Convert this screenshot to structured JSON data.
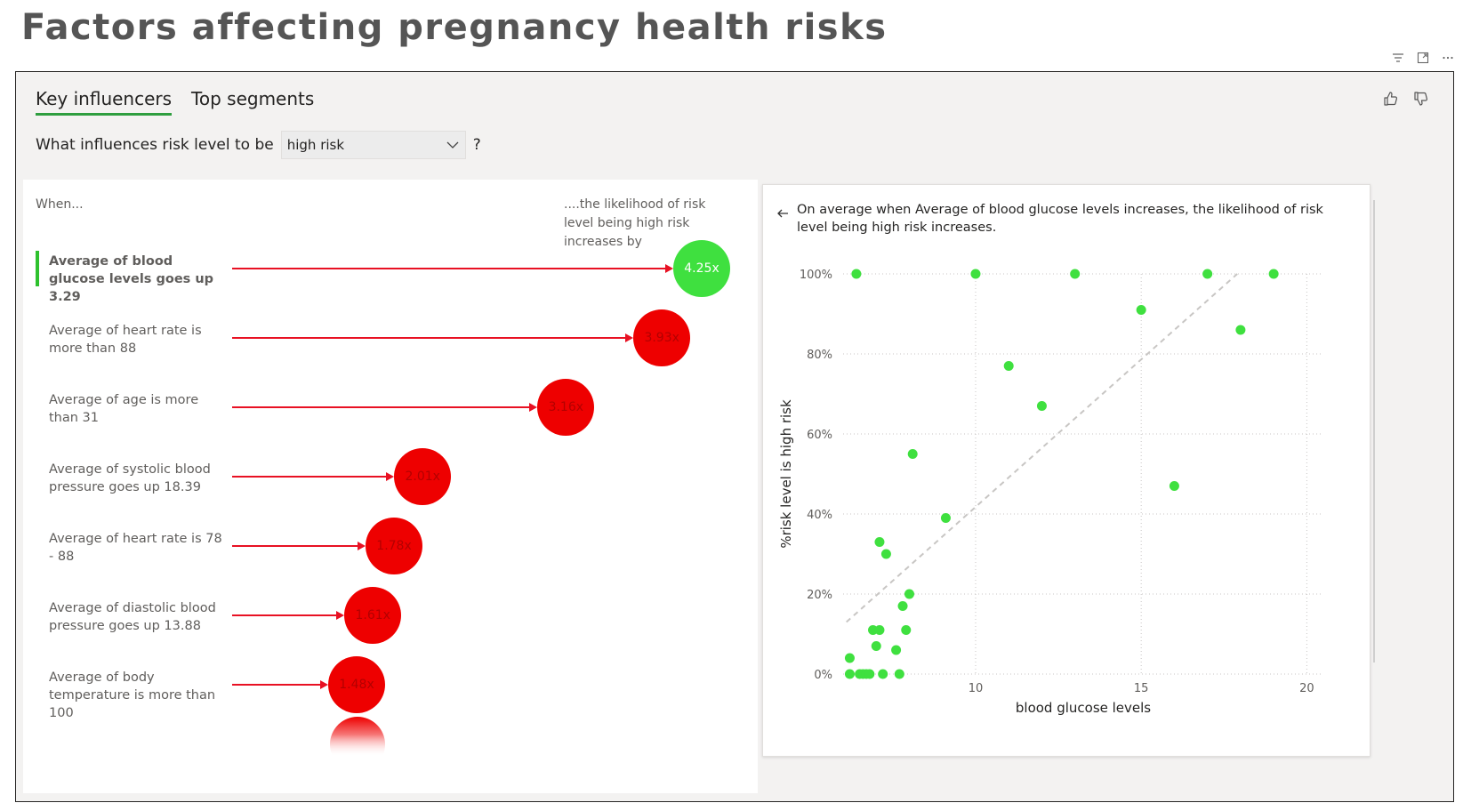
{
  "page": {
    "title": "Factors affecting pregnancy health risks"
  },
  "tabs": [
    {
      "label": "Key influencers",
      "active": true
    },
    {
      "label": "Top segments",
      "active": false
    }
  ],
  "question": {
    "prefix": "What influences risk level to be",
    "selected": "high risk",
    "suffix": "?"
  },
  "left": {
    "when_label": "When...",
    "likelihood_label": "....the likelihood of risk level being high risk increases by",
    "influencers": [
      {
        "label": "Average of blood glucose levels goes up 3.29",
        "value": "4.25x",
        "multiplier": 4.25,
        "selected": true,
        "color": "#3fe03f"
      },
      {
        "label": "Average of heart rate is more than 88",
        "value": "3.93x",
        "multiplier": 3.93,
        "selected": false,
        "color": "#ee0000"
      },
      {
        "label": "Average of age is more than 31",
        "value": "3.16x",
        "multiplier": 3.16,
        "selected": false,
        "color": "#ee0000"
      },
      {
        "label": "Average of systolic blood pressure goes up 18.39",
        "value": "2.01x",
        "multiplier": 2.01,
        "selected": false,
        "color": "#ee0000"
      },
      {
        "label": "Average of heart rate is 78 - 88",
        "value": "1.78x",
        "multiplier": 1.78,
        "selected": false,
        "color": "#ee0000"
      },
      {
        "label": "Average of diastolic blood pressure goes up 13.88",
        "value": "1.61x",
        "multiplier": 1.61,
        "selected": false,
        "color": "#ee0000"
      },
      {
        "label": "Average of body temperature is more than 100",
        "value": "1.48x",
        "multiplier": 1.48,
        "selected": false,
        "color": "#ee0000"
      }
    ]
  },
  "right": {
    "explanation": "On average when Average of blood glucose levels increases, the likelihood of risk level being high risk increases."
  },
  "chart_data": {
    "type": "scatter",
    "xlabel": "blood glucose levels",
    "ylabel": "%risk level is high risk",
    "xlim": [
      6,
      20.5
    ],
    "ylim": [
      0,
      100
    ],
    "x_ticks": [
      10,
      15,
      20
    ],
    "y_ticks": [
      0,
      20,
      40,
      60,
      80,
      100
    ],
    "y_tick_labels": [
      "0%",
      "20%",
      "40%",
      "60%",
      "80%",
      "100%"
    ],
    "grid": true,
    "point_color": "#3fe03f",
    "trend_line": {
      "x": [
        6.1,
        17.9
      ],
      "y": [
        13,
        100
      ]
    },
    "points": [
      {
        "x": 6.4,
        "y": 100
      },
      {
        "x": 10,
        "y": 100
      },
      {
        "x": 13,
        "y": 100
      },
      {
        "x": 17,
        "y": 100
      },
      {
        "x": 19,
        "y": 100
      },
      {
        "x": 15,
        "y": 91
      },
      {
        "x": 18,
        "y": 86
      },
      {
        "x": 11,
        "y": 77
      },
      {
        "x": 12,
        "y": 67
      },
      {
        "x": 8.1,
        "y": 55
      },
      {
        "x": 16,
        "y": 47
      },
      {
        "x": 9.1,
        "y": 39
      },
      {
        "x": 7.1,
        "y": 33
      },
      {
        "x": 7.3,
        "y": 30
      },
      {
        "x": 8.0,
        "y": 20
      },
      {
        "x": 7.8,
        "y": 17
      },
      {
        "x": 6.9,
        "y": 11
      },
      {
        "x": 7.1,
        "y": 11
      },
      {
        "x": 7.9,
        "y": 11
      },
      {
        "x": 7.0,
        "y": 7
      },
      {
        "x": 7.6,
        "y": 6
      },
      {
        "x": 6.2,
        "y": 4
      },
      {
        "x": 6.2,
        "y": 0
      },
      {
        "x": 6.5,
        "y": 0
      },
      {
        "x": 6.6,
        "y": 0
      },
      {
        "x": 6.7,
        "y": 0
      },
      {
        "x": 6.8,
        "y": 0
      },
      {
        "x": 7.2,
        "y": 0
      },
      {
        "x": 7.7,
        "y": 0
      }
    ]
  }
}
